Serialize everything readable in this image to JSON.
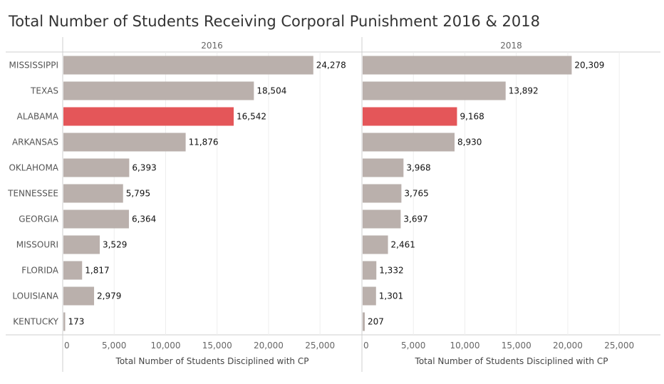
{
  "title": "Total Number of Students Receiving Corporal Punishment 2016 & 2018",
  "colors": {
    "bar": "#bab0ac",
    "highlight": "#e45659"
  },
  "chart_data": {
    "type": "bar",
    "orientation": "horizontal",
    "title": "Total Number of Students Receiving Corporal Punishment 2016 & 2018",
    "categories": [
      "MISSISSIPPI",
      "TEXAS",
      "ALABAMA",
      "ARKANSAS",
      "OKLAHOMA",
      "TENNESSEE",
      "GEORGIA",
      "MISSOURI",
      "FLORIDA",
      "LOUISIANA",
      "KENTUCKY"
    ],
    "highlight_category": "ALABAMA",
    "xlim": [
      0,
      29000
    ],
    "ticks": [
      0,
      5000,
      10000,
      15000,
      20000,
      25000
    ],
    "tick_labels": [
      "0",
      "5,000",
      "10,000",
      "15,000",
      "20,000",
      "25,000"
    ],
    "xlabel": "Total Number of Students Disciplined with CP",
    "grid": true,
    "panels": [
      {
        "name": "2016",
        "values": [
          24278,
          18504,
          16542,
          11876,
          6393,
          5795,
          6364,
          3529,
          1817,
          2979,
          173
        ],
        "value_labels": [
          "24,278",
          "18,504",
          "16,542",
          "11,876",
          "6,393",
          "5,795",
          "6,364",
          "3,529",
          "1,817",
          "2,979",
          "173"
        ]
      },
      {
        "name": "2018",
        "values": [
          20309,
          13892,
          9168,
          8930,
          3968,
          3765,
          3697,
          2461,
          1332,
          1301,
          207
        ],
        "value_labels": [
          "20,309",
          "13,892",
          "9,168",
          "8,930",
          "3,968",
          "3,765",
          "3,697",
          "2,461",
          "1,332",
          "1,301",
          "207"
        ]
      }
    ]
  }
}
